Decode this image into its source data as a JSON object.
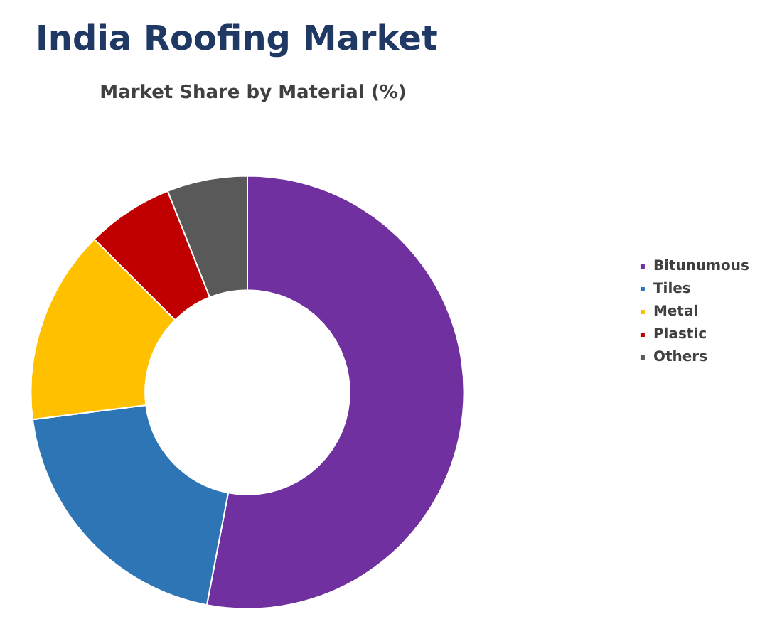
{
  "chart_data": {
    "type": "donut",
    "title": "India Roofing Market",
    "subtitle": "Market Share by Material (%)",
    "categories": [
      "Bitunumous",
      "Tiles",
      "Metal",
      "Plastic",
      "Others"
    ],
    "values": [
      53,
      20,
      14.5,
      6.5,
      6
    ],
    "colors": [
      "#7030a0",
      "#2e75b6",
      "#ffc000",
      "#c00000",
      "#595959"
    ],
    "legend": "right"
  }
}
